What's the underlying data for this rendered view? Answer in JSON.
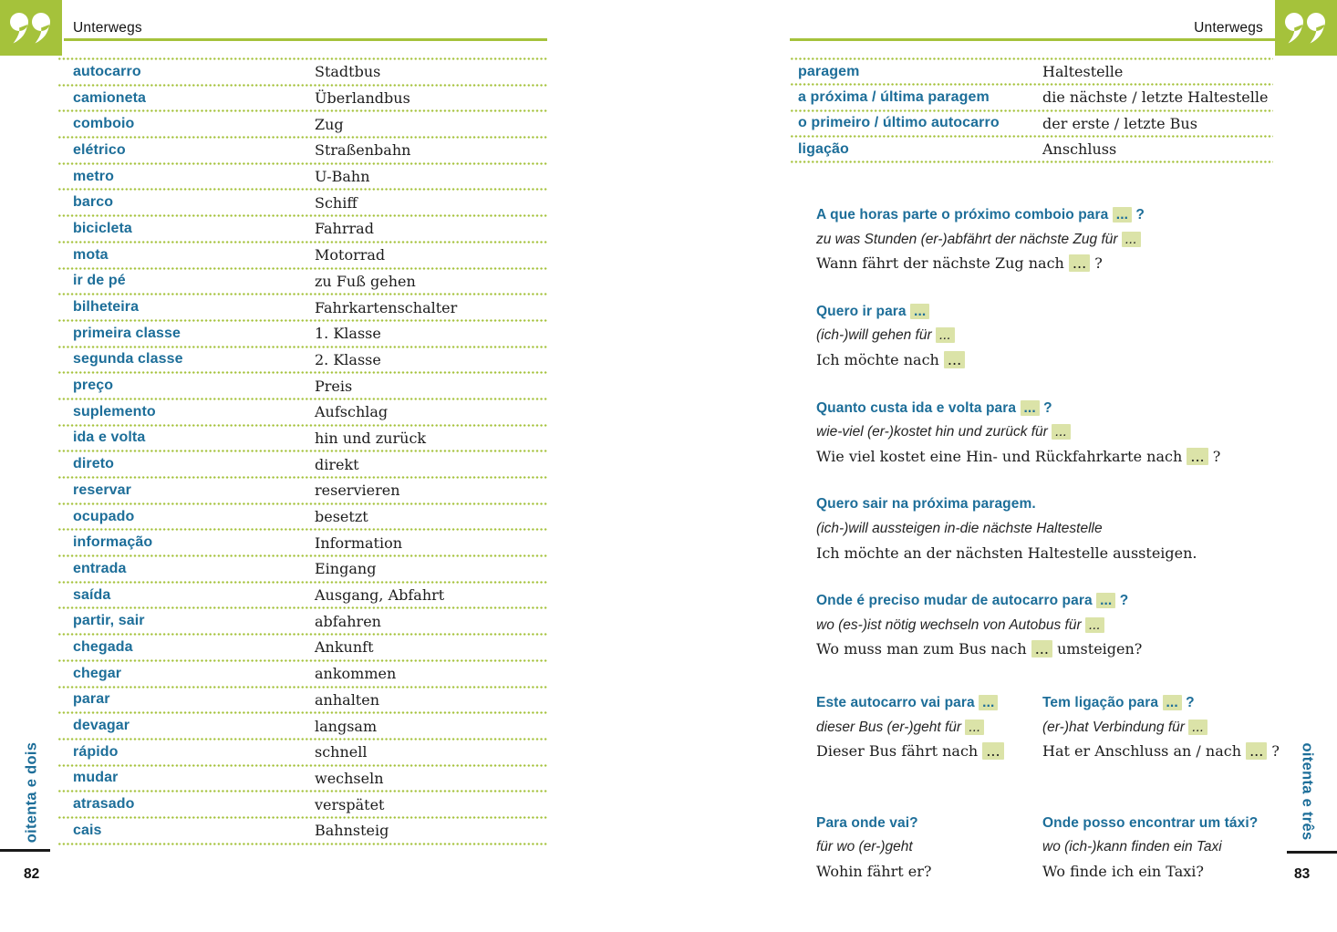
{
  "colors": {
    "green": "#a5c23b",
    "teal": "#1d6e99",
    "highlight": "#dbe3a8",
    "ink": "#1c1c1c"
  },
  "header": {
    "left_title": "Unterwegs",
    "right_title": "Unterwegs"
  },
  "icons": {
    "quotes": "double-quote-marks"
  },
  "left_page": {
    "side_label": "oitenta e dois",
    "page_number": "82",
    "vocab": [
      {
        "pt": "autocarro",
        "de": "Stadtbus"
      },
      {
        "pt": "camioneta",
        "de": "Überlandbus"
      },
      {
        "pt": "comboio",
        "de": "Zug"
      },
      {
        "pt": "elétrico",
        "de": "Straßenbahn"
      },
      {
        "pt": "metro",
        "de": "U-Bahn"
      },
      {
        "pt": "barco",
        "de": "Schiff"
      },
      {
        "pt": "bicicleta",
        "de": "Fahrrad"
      },
      {
        "pt": "mota",
        "de": "Motorrad"
      },
      {
        "pt": "ir de pé",
        "de": "zu Fuß gehen"
      },
      {
        "pt": "bilheteira",
        "de": "Fahrkartenschalter"
      },
      {
        "pt": "primeira classe",
        "de": "1. Klasse"
      },
      {
        "pt": "segunda classe",
        "de": "2. Klasse"
      },
      {
        "pt": "preço",
        "de": "Preis"
      },
      {
        "pt": "suplemento",
        "de": "Aufschlag"
      },
      {
        "pt": "ida e volta",
        "de": "hin und zurück"
      },
      {
        "pt": "direto",
        "de": "direkt"
      },
      {
        "pt": "reservar",
        "de": "reservieren"
      },
      {
        "pt": "ocupado",
        "de": "besetzt"
      },
      {
        "pt": "informação",
        "de": "Information"
      },
      {
        "pt": "entrada",
        "de": "Eingang"
      },
      {
        "pt": "saída",
        "de": "Ausgang, Abfahrt"
      },
      {
        "pt": "partir, sair",
        "de": "abfahren"
      },
      {
        "pt": "chegada",
        "de": "Ankunft"
      },
      {
        "pt": "chegar",
        "de": "ankommen"
      },
      {
        "pt": "parar",
        "de": "anhalten"
      },
      {
        "pt": "devagar",
        "de": "langsam"
      },
      {
        "pt": "rápido",
        "de": "schnell"
      },
      {
        "pt": "mudar",
        "de": "wechseln"
      },
      {
        "pt": "atrasado",
        "de": "verspätet"
      },
      {
        "pt": "cais",
        "de": "Bahnsteig"
      }
    ]
  },
  "right_page": {
    "side_label": "oitenta e três",
    "page_number": "83",
    "vocab": [
      {
        "pt": "paragem",
        "de": "Haltestelle"
      },
      {
        "pt": "a próxima / última paragem",
        "de": "die nächste / letzte Haltestelle"
      },
      {
        "pt": "o primeiro / último autocarro",
        "de": "der erste / letzte Bus"
      },
      {
        "pt": "ligação",
        "de": "Anschluss"
      }
    ],
    "phrases": [
      {
        "pt": "A que horas parte o próximo comboio para ... ?",
        "lit": "zu was Stunden (er-)abfährt der nächste Zug für ...",
        "de": "Wann fährt der nächste Zug nach ... ?"
      },
      {
        "pt": "Quero ir para ...",
        "lit": "(ich-)will gehen für ...",
        "de": "Ich möchte nach ..."
      },
      {
        "pt": "Quanto custa ida e volta para ... ?",
        "lit": "wie-viel (er-)kostet hin und zurück für ...",
        "de": "Wie viel kostet eine Hin- und Rückfahrkarte nach ... ?"
      },
      {
        "pt": "Quero sair na próxima paragem.",
        "lit": "(ich-)will aussteigen in-die nächste Haltestelle",
        "de": "Ich möchte an der nächsten Haltestelle aussteigen."
      },
      {
        "pt": "Onde é preciso mudar de autocarro para ... ?",
        "lit": "wo (es-)ist nötig wechseln von Autobus für ...",
        "de": "Wo muss man zum Bus nach ... umsteigen?"
      }
    ],
    "phrase_pairs": [
      {
        "left": {
          "pt": "Este autocarro vai para ...",
          "lit": "dieser Bus (er-)geht für ...",
          "de": "Dieser Bus fährt nach ..."
        },
        "right": {
          "pt": "Tem ligação para ... ?",
          "lit": "(er-)hat Verbindung für ...",
          "de": "Hat er Anschluss an / nach ... ?"
        }
      },
      {
        "left": {
          "pt": "Para onde vai?",
          "lit": "für wo (er-)geht",
          "de": "Wohin fährt er?"
        },
        "right": {
          "pt": "Onde posso encontrar um táxi?",
          "lit": "wo (ich-)kann finden ein Taxi",
          "de": "Wo finde ich ein Taxi?"
        }
      }
    ]
  }
}
